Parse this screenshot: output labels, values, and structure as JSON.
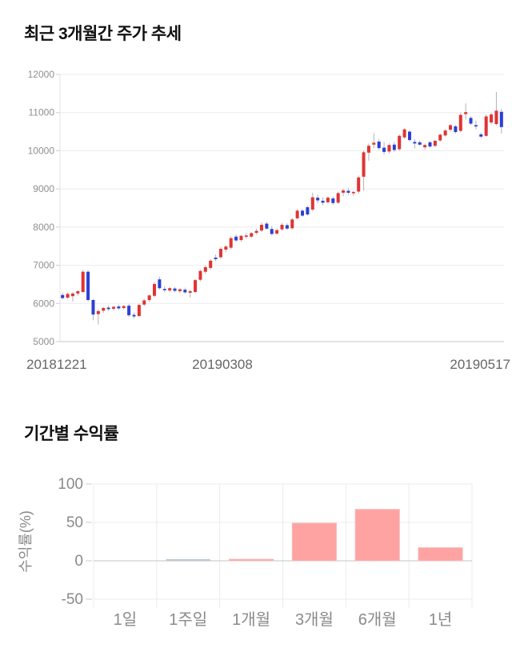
{
  "page": {
    "background": "#ffffff"
  },
  "chart_data": [
    {
      "type": "candlestick",
      "title": "최근 3개월간 주가 추세",
      "xlabel": "",
      "ylabel": "",
      "ylim": [
        5000,
        12000
      ],
      "y_ticks": [
        12000,
        11000,
        10000,
        9000,
        8000,
        7000,
        6000,
        5000
      ],
      "x_tick_labels": [
        "20181221",
        "20190308",
        "20190517"
      ],
      "grid": true,
      "legend_position": "none",
      "up_color": "#e13333",
      "down_color": "#2b3fd6",
      "wick_color": "#b3b3b3",
      "grid_color": "#ebebeb",
      "axis_color": "#c9c9c9",
      "tick_label_color": "#8f8f8f",
      "x_label_color": "#666666",
      "ohlc": [
        [
          6220,
          6280,
          6100,
          6140
        ],
        [
          6150,
          6290,
          6120,
          6250
        ],
        [
          6190,
          6300,
          6050,
          6260
        ],
        [
          6260,
          6350,
          6200,
          6320
        ],
        [
          6300,
          6880,
          6270,
          6830
        ],
        [
          6830,
          6870,
          6050,
          6090
        ],
        [
          6090,
          6120,
          5560,
          5710
        ],
        [
          5720,
          5840,
          5450,
          5800
        ],
        [
          5810,
          5910,
          5750,
          5880
        ],
        [
          5890,
          5950,
          5800,
          5850
        ],
        [
          5860,
          5940,
          5810,
          5910
        ],
        [
          5920,
          5970,
          5830,
          5870
        ],
        [
          5880,
          5960,
          5840,
          5930
        ],
        [
          5940,
          5990,
          5640,
          5690
        ],
        [
          5700,
          5760,
          5600,
          5660
        ],
        [
          5670,
          6000,
          5640,
          5960
        ],
        [
          5970,
          6120,
          5930,
          6080
        ],
        [
          6090,
          6250,
          6040,
          6210
        ],
        [
          6200,
          6560,
          6160,
          6510
        ],
        [
          6630,
          6700,
          6360,
          6400
        ],
        [
          6380,
          6450,
          6290,
          6360
        ],
        [
          6340,
          6430,
          6300,
          6400
        ],
        [
          6390,
          6430,
          6290,
          6330
        ],
        [
          6320,
          6400,
          6270,
          6370
        ],
        [
          6360,
          6410,
          6250,
          6290
        ],
        [
          6280,
          6360,
          6150,
          6320
        ],
        [
          6300,
          6640,
          6270,
          6610
        ],
        [
          6620,
          6890,
          6580,
          6850
        ],
        [
          6830,
          7000,
          6780,
          6950
        ],
        [
          6930,
          7160,
          6890,
          7120
        ],
        [
          7200,
          7280,
          7110,
          7160
        ],
        [
          7210,
          7470,
          7170,
          7430
        ],
        [
          7410,
          7530,
          7340,
          7490
        ],
        [
          7460,
          7760,
          7420,
          7710
        ],
        [
          7750,
          7810,
          7610,
          7650
        ],
        [
          7660,
          7800,
          7620,
          7770
        ],
        [
          7760,
          7850,
          7690,
          7780
        ],
        [
          7750,
          7870,
          7710,
          7840
        ],
        [
          7850,
          7960,
          7800,
          7900
        ],
        [
          7910,
          8120,
          7870,
          8060
        ],
        [
          8090,
          8140,
          7930,
          7960
        ],
        [
          7950,
          8030,
          7780,
          7820
        ],
        [
          7830,
          7960,
          7790,
          7920
        ],
        [
          7940,
          8100,
          7900,
          8060
        ],
        [
          8050,
          8100,
          7920,
          7960
        ],
        [
          7970,
          8240,
          7930,
          8200
        ],
        [
          8230,
          8480,
          8200,
          8430
        ],
        [
          8430,
          8470,
          8270,
          8300
        ],
        [
          8520,
          8560,
          8300,
          8330
        ],
        [
          8460,
          8900,
          8410,
          8780
        ],
        [
          8770,
          8850,
          8630,
          8700
        ],
        [
          8690,
          8780,
          8570,
          8640
        ],
        [
          8650,
          8810,
          8610,
          8770
        ],
        [
          8750,
          8800,
          8580,
          8630
        ],
        [
          8640,
          8930,
          8600,
          8890
        ],
        [
          8900,
          9010,
          8810,
          8960
        ],
        [
          8950,
          9020,
          8850,
          8900
        ],
        [
          8890,
          8950,
          8820,
          8920
        ],
        [
          8930,
          9350,
          8880,
          9300
        ],
        [
          9320,
          10010,
          8950,
          9960
        ],
        [
          9950,
          10190,
          9740,
          10130
        ],
        [
          10160,
          10460,
          10060,
          10210
        ],
        [
          10240,
          10310,
          10020,
          10070
        ],
        [
          10080,
          10230,
          9900,
          9970
        ],
        [
          9980,
          10190,
          9930,
          10150
        ],
        [
          10160,
          10230,
          9970,
          10020
        ],
        [
          10040,
          10430,
          10000,
          10390
        ],
        [
          10350,
          10590,
          10310,
          10560
        ],
        [
          10500,
          10540,
          10240,
          10280
        ],
        [
          10230,
          10300,
          10060,
          10190
        ],
        [
          10220,
          10270,
          10130,
          10160
        ],
        [
          10090,
          10190,
          10030,
          10150
        ],
        [
          10220,
          10260,
          10080,
          10110
        ],
        [
          10130,
          10290,
          10090,
          10260
        ],
        [
          10270,
          10450,
          10230,
          10420
        ],
        [
          10400,
          10570,
          10370,
          10530
        ],
        [
          10550,
          10700,
          10500,
          10670
        ],
        [
          10640,
          10680,
          10450,
          10490
        ],
        [
          10520,
          10990,
          10480,
          10940
        ],
        [
          10960,
          11240,
          10820,
          11010
        ],
        [
          10860,
          10910,
          10670,
          10710
        ],
        [
          10670,
          10790,
          10560,
          10660
        ],
        [
          10430,
          10480,
          10330,
          10370
        ],
        [
          10390,
          10950,
          10370,
          10900
        ],
        [
          10740,
          10990,
          10690,
          10950
        ],
        [
          10700,
          11540,
          10660,
          11050
        ],
        [
          11020,
          11100,
          10450,
          10620
        ]
      ]
    },
    {
      "type": "bar",
      "title": "기간별 수익률",
      "xlabel": "",
      "ylabel": "수익률(%)",
      "categories": [
        "1일",
        "1주일",
        "1개월",
        "3개월",
        "6개월",
        "1년"
      ],
      "values": [
        null,
        0,
        2,
        49,
        67,
        17
      ],
      "ylim": [
        -50,
        100
      ],
      "y_ticks": [
        100,
        50,
        0,
        -50
      ],
      "grid": true,
      "legend_position": "none",
      "bar_color": "#ffa2a2",
      "bar_border_color": "#f3bcbc",
      "zero_bar_color": "#b9c9d6",
      "grid_color": "#ececec",
      "zero_line_color": "#c6c6c6",
      "tick_label_color": "#8a8a8a",
      "x_label_color": "#8a8a8a",
      "ylabel_color": "#8a8a8a"
    }
  ]
}
